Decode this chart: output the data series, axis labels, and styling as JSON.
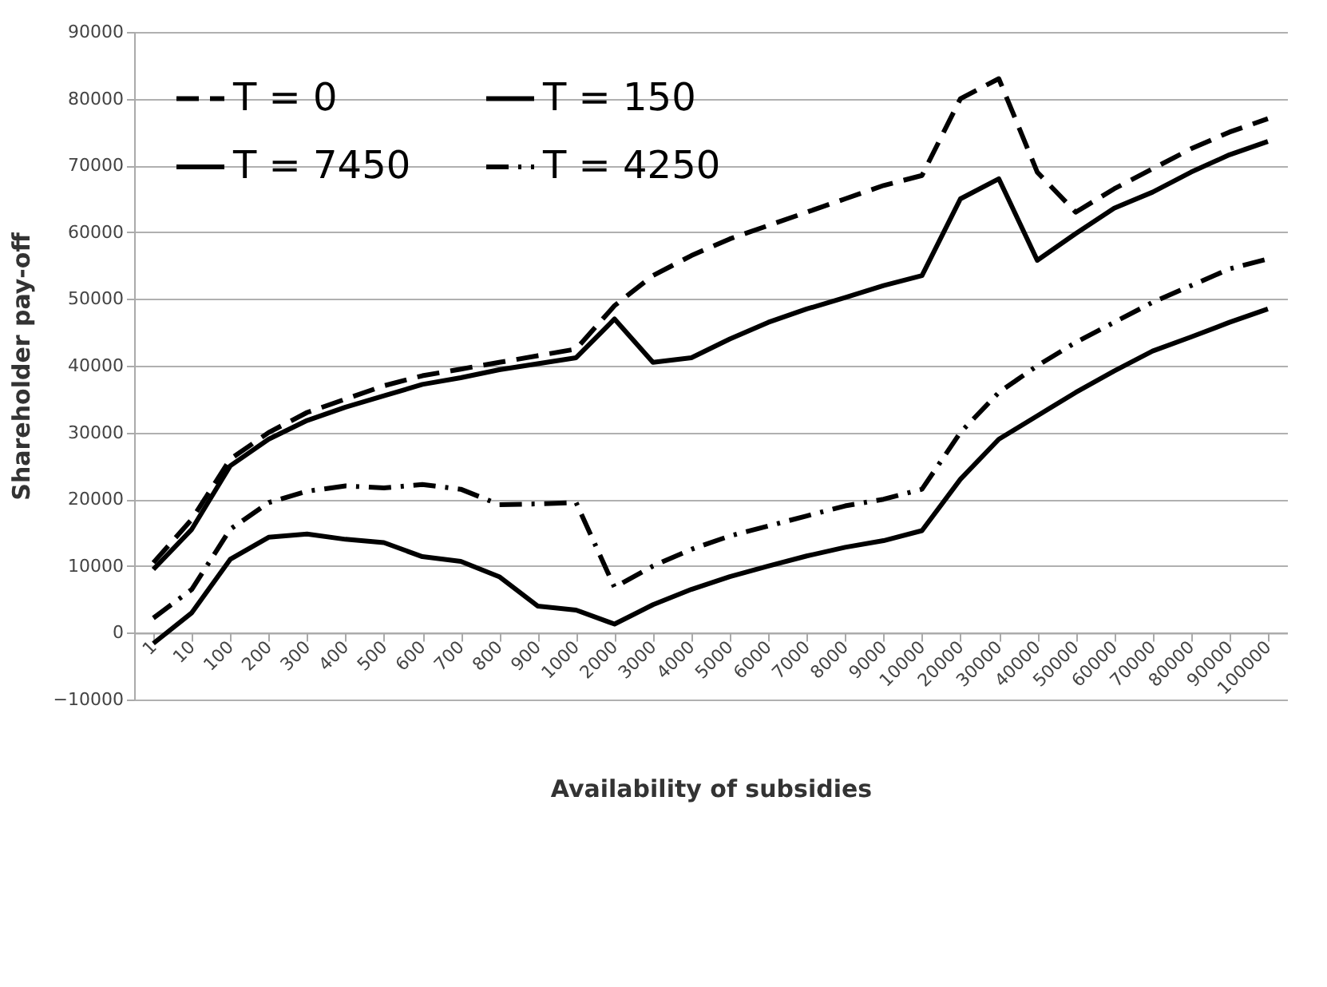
{
  "chart_data": {
    "type": "line",
    "xlabel": "Availability of subsidies",
    "ylabel": "Shareholder pay-off",
    "categories": [
      "1",
      "10",
      "100",
      "200",
      "300",
      "400",
      "500",
      "600",
      "700",
      "800",
      "900",
      "1000",
      "2000",
      "3000",
      "4000",
      "5000",
      "6000",
      "7000",
      "8000",
      "9000",
      "10000",
      "20000",
      "30000",
      "40000",
      "50000",
      "60000",
      "70000",
      "80000",
      "90000",
      "100000"
    ],
    "series": [
      {
        "name": "T = 0",
        "color": "#000000",
        "line_style": "dashed",
        "values": [
          10500,
          17000,
          26000,
          30000,
          33000,
          35000,
          37000,
          38500,
          39500,
          40500,
          41500,
          42500,
          49000,
          53500,
          56500,
          59000,
          61000,
          63000,
          65000,
          67000,
          68500,
          80000,
          83000,
          69000,
          63000,
          66500,
          69500,
          72500,
          75000,
          77000
        ]
      },
      {
        "name": "T = 150",
        "color": "#000000",
        "line_style": "solid",
        "values": [
          9500,
          15500,
          25000,
          29000,
          31800,
          33800,
          35500,
          37200,
          38200,
          39400,
          40300,
          41200,
          47000,
          40500,
          41200,
          44000,
          46500,
          48500,
          50200,
          52000,
          53500,
          65000,
          68000,
          55800,
          59800,
          63600,
          66000,
          69000,
          71600,
          73600
        ]
      },
      {
        "name": "T = 7450",
        "color": "#000000",
        "line_style": "solid",
        "values": [
          -1600,
          3000,
          11000,
          14300,
          14800,
          14000,
          13500,
          11400,
          10700,
          8400,
          4000,
          3400,
          1300,
          4200,
          6500,
          8400,
          10000,
          11500,
          12800,
          13800,
          15300,
          23000,
          29000,
          32500,
          36000,
          39200,
          42200,
          44300,
          46500,
          48500
        ]
      },
      {
        "name": "T = 4250",
        "color": "#000000",
        "line_style": "dashdot",
        "values": [
          2200,
          6500,
          15500,
          19500,
          21200,
          22000,
          21700,
          22200,
          21500,
          19200,
          19300,
          19500,
          6800,
          10000,
          12500,
          14500,
          16000,
          17500,
          19000,
          20000,
          21500,
          30000,
          36000,
          40000,
          43500,
          46500,
          49500,
          52000,
          54500,
          56000
        ]
      }
    ],
    "ylim": [
      -10000,
      90000
    ],
    "yticks": [
      -10000,
      0,
      10000,
      20000,
      30000,
      40000,
      50000,
      60000,
      70000,
      80000,
      90000
    ],
    "grid": "y",
    "legend": "top left"
  }
}
